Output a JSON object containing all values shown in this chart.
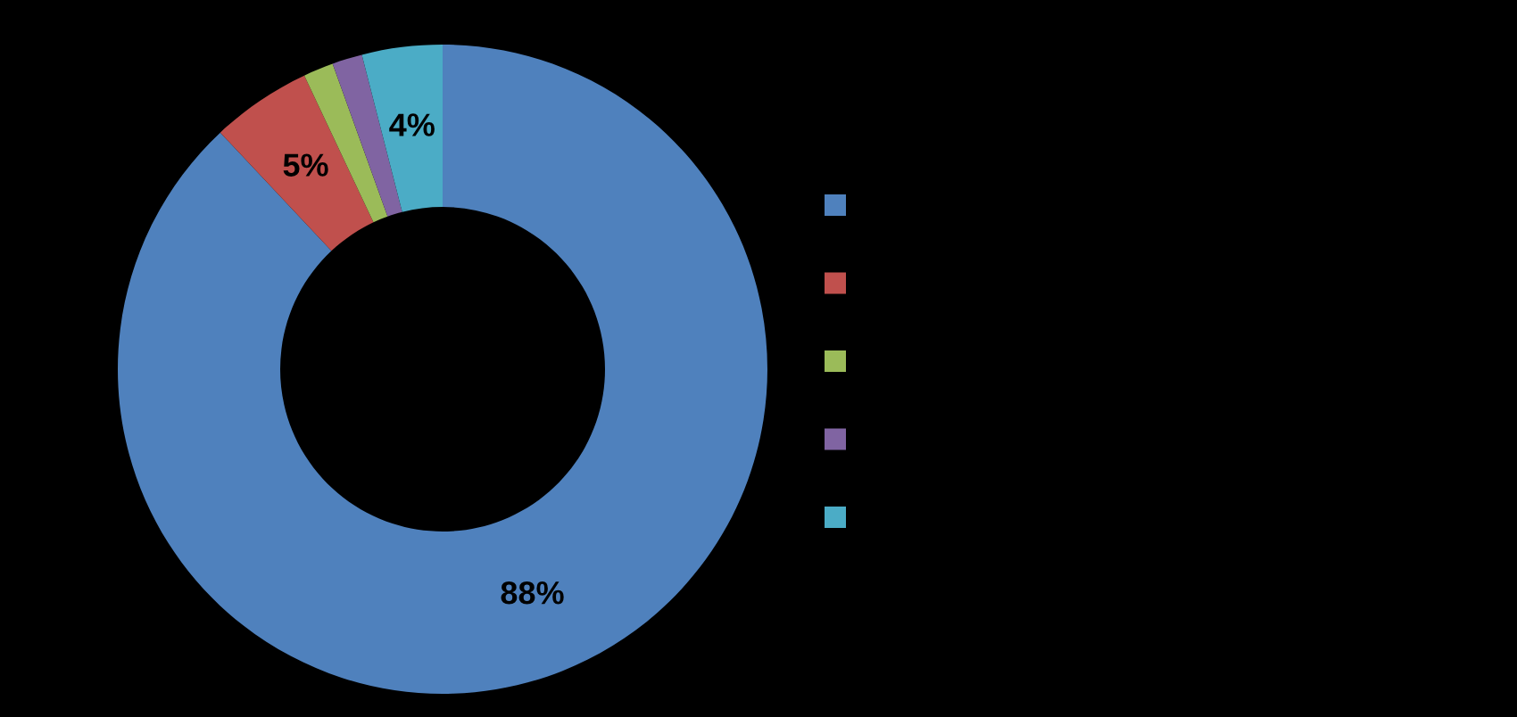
{
  "chart_data": {
    "type": "donut",
    "categories": [
      null,
      null,
      null,
      null,
      null
    ],
    "values": [
      88,
      5,
      1.5,
      1.5,
      4
    ],
    "colors": [
      "#4f81bd",
      "#c0504d",
      "#9bbb59",
      "#8064a2",
      "#4bacc6"
    ],
    "value_labels": [
      "88%",
      "5%",
      null,
      null,
      "4%"
    ]
  }
}
